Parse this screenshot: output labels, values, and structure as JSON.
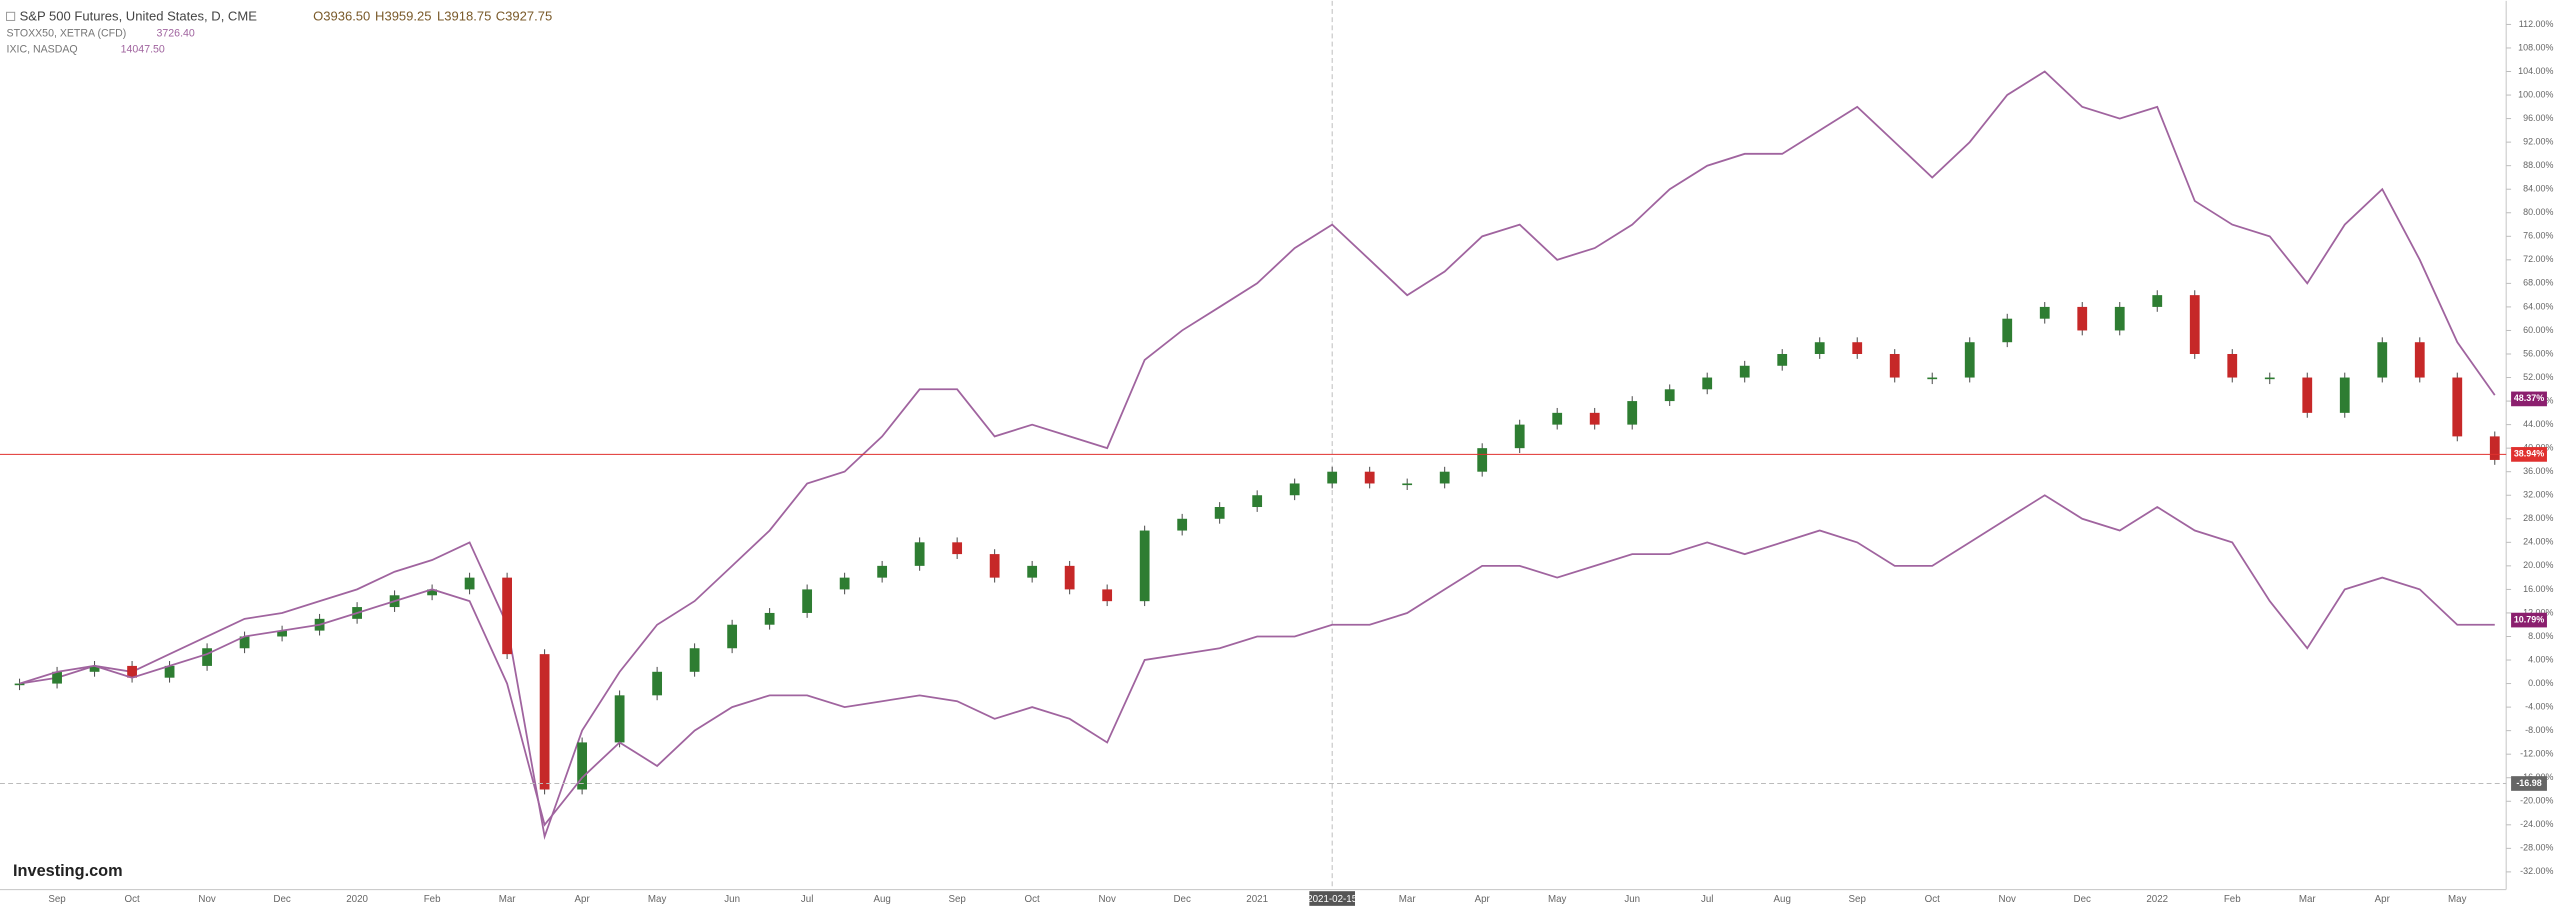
{
  "chart_data": {
    "type": "candlestick-comparison",
    "title": "S&P 500 Futures, United States, D, CME",
    "ohlc": {
      "open": "O3936.50",
      "high": "H3959.25",
      "low": "L3918.75",
      "close": "C3927.75"
    },
    "compare": [
      {
        "name": "STOXX50, XETRA (CFD)",
        "last": "3726.40"
      },
      {
        "name": "IXIC, NASDAQ",
        "last": "14047.50"
      }
    ],
    "logo": "Investing.com",
    "crosshair_date": "2021-02-15",
    "categories": [
      null,
      "Sep",
      null,
      "Oct",
      null,
      "Nov",
      null,
      "Dec",
      null,
      "2020",
      null,
      "Feb",
      null,
      "Mar",
      null,
      "Apr",
      null,
      "May",
      null,
      "Jun",
      null,
      "Jul",
      null,
      "Aug",
      null,
      "Sep",
      null,
      "Oct",
      null,
      "Nov",
      null,
      "Dec",
      null,
      "2021",
      null,
      "Feb",
      null,
      "Mar",
      null,
      "Apr",
      null,
      "May",
      null,
      "Jun",
      null,
      "Jul",
      null,
      "Aug",
      null,
      "Sep",
      null,
      "Oct",
      null,
      "Nov",
      null,
      "Dec",
      null,
      "2022",
      null,
      "Feb",
      null,
      "Mar",
      null,
      "Apr",
      null,
      "May",
      null
    ],
    "series": [
      {
        "name": "IXIC, NASDAQ",
        "kind": "line",
        "color": "#a0649f",
        "values": [
          0,
          1,
          3,
          2,
          5,
          8,
          11,
          12,
          14,
          16,
          19,
          21,
          24,
          10,
          -26,
          -8,
          2,
          10,
          14,
          20,
          26,
          34,
          36,
          42,
          50,
          50,
          42,
          44,
          42,
          40,
          55,
          60,
          64,
          68,
          74,
          78,
          72,
          66,
          70,
          76,
          78,
          72,
          74,
          78,
          84,
          88,
          90,
          90,
          94,
          98,
          92,
          86,
          92,
          100,
          104,
          98,
          96,
          98,
          82,
          78,
          76,
          68,
          78,
          84,
          72,
          58,
          49
        ]
      },
      {
        "name": "S&P 500 Futures, United States, D, CME",
        "kind": "candle",
        "color": "#2e7d32",
        "down_color": "#c62828",
        "values": [
          0,
          2,
          3,
          1,
          3,
          6,
          8,
          9,
          11,
          13,
          15,
          16,
          18,
          5,
          -18,
          -10,
          -2,
          2,
          6,
          10,
          12,
          16,
          18,
          20,
          24,
          22,
          18,
          20,
          16,
          14,
          26,
          28,
          30,
          32,
          34,
          36,
          34,
          34,
          36,
          40,
          44,
          46,
          44,
          48,
          50,
          52,
          54,
          56,
          58,
          56,
          52,
          52,
          58,
          62,
          64,
          60,
          64,
          66,
          56,
          52,
          52,
          46,
          52,
          58,
          52,
          42,
          38
        ]
      },
      {
        "name": "STOXX50, XETRA (CFD)",
        "kind": "line",
        "color": "#a0649f",
        "values": [
          0,
          2,
          3,
          1,
          3,
          5,
          8,
          9,
          10,
          12,
          14,
          16,
          14,
          0,
          -24,
          -16,
          -10,
          -14,
          -8,
          -4,
          -2,
          -2,
          -4,
          -3,
          -2,
          -3,
          -6,
          -4,
          -6,
          -10,
          4,
          5,
          6,
          8,
          8,
          10,
          10,
          12,
          16,
          20,
          20,
          18,
          20,
          22,
          22,
          24,
          22,
          24,
          26,
          24,
          20,
          20,
          24,
          28,
          32,
          28,
          26,
          30,
          26,
          24,
          14,
          6,
          16,
          18,
          16,
          10,
          10
        ]
      }
    ],
    "price_labels": [
      {
        "label": "48.37%",
        "value": 48.37,
        "color": "#8b1f6e"
      },
      {
        "label": "38.94%",
        "value": 38.94,
        "color": "#e0302e"
      },
      {
        "label": "10.79%",
        "value": 10.79,
        "color": "#8b1f6e"
      },
      {
        "label": "-16.98",
        "value": -16.98,
        "color": "#666666"
      }
    ],
    "ylim": [
      -35,
      116
    ],
    "yticks": [
      {
        "value": -32,
        "label": "-32.00%"
      },
      {
        "value": -28,
        "label": "-28.00%"
      },
      {
        "value": -24,
        "label": "-24.00%"
      },
      {
        "value": -20,
        "label": "-20.00%"
      },
      {
        "value": -16,
        "label": "-16.00%"
      },
      {
        "value": -12,
        "label": "-12.00%"
      },
      {
        "value": -8,
        "label": "-8.00%"
      },
      {
        "value": -4,
        "label": "-4.00%"
      },
      {
        "value": 0,
        "label": "0.00%"
      },
      {
        "value": 4,
        "label": "4.00%"
      },
      {
        "value": 8,
        "label": "8.00%"
      },
      {
        "value": 12,
        "label": "12.00%"
      },
      {
        "value": 16,
        "label": "16.00%"
      },
      {
        "value": 20,
        "label": "20.00%"
      },
      {
        "value": 24,
        "label": "24.00%"
      },
      {
        "value": 28,
        "label": "28.00%"
      },
      {
        "value": 32,
        "label": "32.00%"
      },
      {
        "value": 36,
        "label": "36.00%"
      },
      {
        "value": 40,
        "label": "40.00%"
      },
      {
        "value": 44,
        "label": "44.00%"
      },
      {
        "value": 48,
        "label": "48.00%"
      },
      {
        "value": 52,
        "label": "52.00%"
      },
      {
        "value": 56,
        "label": "56.00%"
      },
      {
        "value": 60,
        "label": "60.00%"
      },
      {
        "value": 64,
        "label": "64.00%"
      },
      {
        "value": 68,
        "label": "68.00%"
      },
      {
        "value": 72,
        "label": "72.00%"
      },
      {
        "value": 76,
        "label": "76.00%"
      },
      {
        "value": 80,
        "label": "80.00%"
      },
      {
        "value": 84,
        "label": "84.00%"
      },
      {
        "value": 88,
        "label": "88.00%"
      },
      {
        "value": 92,
        "label": "92.00%"
      },
      {
        "value": 96,
        "label": "96.00%"
      },
      {
        "value": 100,
        "label": "100.00%"
      },
      {
        "value": 104,
        "label": "104.00%"
      },
      {
        "value": 108,
        "label": "108.00%"
      },
      {
        "value": 112,
        "label": "112.00%"
      }
    ],
    "crosshair_index": 35
  }
}
